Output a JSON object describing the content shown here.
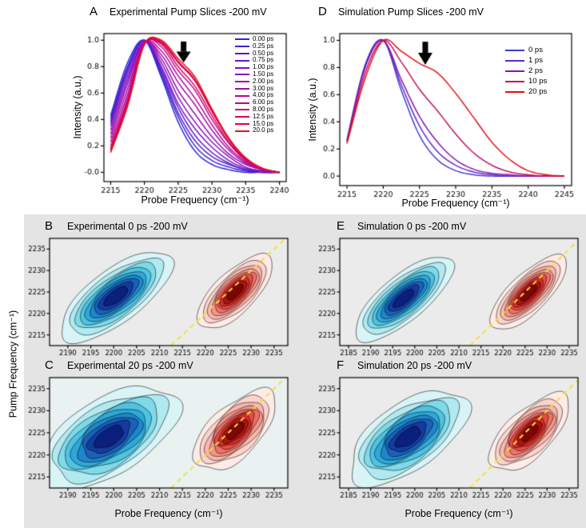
{
  "figure": {
    "bg": "#ffffff",
    "contour_section_bg": "#e4e4e4"
  },
  "shared_labels": {
    "pump_axis": "Pump Frequency (cm⁻¹)",
    "probe_axis": "Probe Frequency (cm⁻¹)"
  },
  "chart_data": [
    {
      "id": "A",
      "type": "line",
      "letter": "A",
      "title": "Experimental Pump Slices -200 mV",
      "xlabel": "Probe Frequency (cm⁻¹)",
      "ylabel": "Intensity (a.u.)",
      "xlim": [
        2214,
        2241
      ],
      "ylim": [
        -0.07,
        1.05
      ],
      "xticks": [
        2215,
        2220,
        2225,
        2230,
        2235,
        2240
      ],
      "yticks": [
        1.0,
        0.8,
        0.6,
        0.4,
        0.2,
        0.0
      ],
      "ytick_labels": [
        "1.0",
        "0.8",
        "0.6",
        "0.4",
        "0.2",
        "-0.0"
      ],
      "arrow": {
        "x": 2225.8,
        "top_y": 0.99,
        "tip_y": 0.83
      },
      "x": [
        2215,
        2217.5,
        2220,
        2222.5,
        2225,
        2227.5,
        2230,
        2232.5,
        2235,
        2237.5,
        2240
      ],
      "series": [
        {
          "name": "0.00 ps",
          "color": "#2828dc",
          "values": [
            0.43,
            0.83,
            1.0,
            0.72,
            0.38,
            0.16,
            0.06,
            0.02,
            0.0,
            0.0,
            0.0
          ]
        },
        {
          "name": "0.25 ps",
          "color": "#3d22d6",
          "values": [
            0.41,
            0.8,
            1.0,
            0.74,
            0.42,
            0.2,
            0.09,
            0.04,
            0.01,
            0.0,
            0.0
          ]
        },
        {
          "name": "0.50 ps",
          "color": "#511dd0",
          "values": [
            0.39,
            0.78,
            1.0,
            0.76,
            0.45,
            0.24,
            0.12,
            0.06,
            0.02,
            0.0,
            0.0
          ]
        },
        {
          "name": "0.75 ps",
          "color": "#6418ca",
          "values": [
            0.37,
            0.76,
            1.0,
            0.78,
            0.49,
            0.28,
            0.15,
            0.07,
            0.02,
            0.01,
            0.0
          ]
        },
        {
          "name": "1.00 ps",
          "color": "#7614c4",
          "values": [
            0.35,
            0.73,
            0.99,
            0.8,
            0.52,
            0.33,
            0.19,
            0.09,
            0.03,
            0.01,
            0.0
          ]
        },
        {
          "name": "1.50 ps",
          "color": "#8810bc",
          "values": [
            0.32,
            0.7,
            0.99,
            0.83,
            0.57,
            0.38,
            0.23,
            0.12,
            0.04,
            0.01,
            0.0
          ]
        },
        {
          "name": "2.00 ps",
          "color": "#970cb2",
          "values": [
            0.29,
            0.67,
            0.99,
            0.86,
            0.62,
            0.44,
            0.27,
            0.14,
            0.06,
            0.02,
            0.0
          ]
        },
        {
          "name": "3.00 ps",
          "color": "#a609a6",
          "values": [
            0.26,
            0.63,
            0.98,
            0.89,
            0.68,
            0.51,
            0.32,
            0.17,
            0.07,
            0.02,
            0.0
          ]
        },
        {
          "name": "4.00 ps",
          "color": "#b40797",
          "values": [
            0.23,
            0.59,
            0.98,
            0.92,
            0.73,
            0.56,
            0.36,
            0.19,
            0.08,
            0.02,
            0.0
          ]
        },
        {
          "name": "6.00 ps",
          "color": "#c10584",
          "values": [
            0.2,
            0.56,
            0.98,
            0.95,
            0.77,
            0.62,
            0.4,
            0.22,
            0.09,
            0.02,
            0.0
          ]
        },
        {
          "name": "8.00 ps",
          "color": "#cd0370",
          "values": [
            0.18,
            0.54,
            0.97,
            0.97,
            0.8,
            0.65,
            0.43,
            0.23,
            0.1,
            0.03,
            0.0
          ]
        },
        {
          "name": "12.5 ps",
          "color": "#d80257",
          "values": [
            0.17,
            0.52,
            0.97,
            0.98,
            0.83,
            0.69,
            0.46,
            0.25,
            0.1,
            0.03,
            0.0
          ]
        },
        {
          "name": "15.0 ps",
          "color": "#e2013c",
          "values": [
            0.16,
            0.51,
            0.97,
            0.99,
            0.84,
            0.7,
            0.47,
            0.25,
            0.11,
            0.03,
            0.0
          ]
        },
        {
          "name": "20.0 ps",
          "color": "#e81414",
          "values": [
            0.15,
            0.5,
            0.97,
            1.0,
            0.86,
            0.72,
            0.48,
            0.26,
            0.11,
            0.03,
            0.0
          ]
        }
      ]
    },
    {
      "id": "D",
      "type": "line",
      "letter": "D",
      "title": "Simulation Pump Slices -200 mV",
      "xlabel": "Probe Frequency (cm⁻¹)",
      "ylabel": "Intensity (a.u.)",
      "xlim": [
        2214,
        2246
      ],
      "ylim": [
        -0.07,
        1.05
      ],
      "xticks": [
        2215,
        2220,
        2225,
        2230,
        2235,
        2240,
        2245
      ],
      "yticks": [
        1.0,
        0.8,
        0.6,
        0.4,
        0.2,
        0.0
      ],
      "ytick_labels": [
        "1.0",
        "0.8",
        "0.6",
        "0.4",
        "0.2",
        "0.0"
      ],
      "arrow": {
        "x": 2225.8,
        "top_y": 0.99,
        "tip_y": 0.82
      },
      "x": [
        2215,
        2217.5,
        2220,
        2222.5,
        2225,
        2227.5,
        2230,
        2232.5,
        2235,
        2237.5,
        2240,
        2242.5,
        2245
      ],
      "series": [
        {
          "name": "0 ps",
          "color": "#3c3cd4",
          "values": [
            0.27,
            0.82,
            1.0,
            0.63,
            0.3,
            0.12,
            0.04,
            0.01,
            0.0,
            0.0,
            0.0,
            0.0,
            0.0
          ]
        },
        {
          "name": "1 ps",
          "color": "#5f28c8",
          "values": [
            0.26,
            0.81,
            1.0,
            0.67,
            0.37,
            0.18,
            0.08,
            0.03,
            0.01,
            0.0,
            0.0,
            0.0,
            0.0
          ]
        },
        {
          "name": "2 ps",
          "color": "#8c14ac",
          "values": [
            0.26,
            0.8,
            1.0,
            0.71,
            0.44,
            0.25,
            0.12,
            0.05,
            0.02,
            0.01,
            0.0,
            0.0,
            0.0
          ]
        },
        {
          "name": "10 ps",
          "color": "#c11060",
          "values": [
            0.25,
            0.76,
            1.0,
            0.84,
            0.64,
            0.48,
            0.31,
            0.17,
            0.08,
            0.03,
            0.01,
            0.0,
            0.0
          ]
        },
        {
          "name": "20 ps",
          "color": "#e01212",
          "values": [
            0.24,
            0.72,
            1.0,
            0.92,
            0.83,
            0.76,
            0.61,
            0.43,
            0.25,
            0.12,
            0.04,
            0.01,
            0.0
          ]
        }
      ]
    },
    {
      "id": "B",
      "type": "contour",
      "letter": "B",
      "title": "Experimental 0 ps -200 mV",
      "xlim": [
        2186,
        2238
      ],
      "ylim": [
        2212.5,
        2237.5
      ],
      "xticks": [
        2190,
        2195,
        2200,
        2205,
        2210,
        2215,
        2220,
        2225,
        2230,
        2235
      ],
      "yticks": [
        2215,
        2220,
        2225,
        2230,
        2235
      ],
      "plot_bg": "#ebebeb",
      "diagonal_color": "#f5e13a",
      "wobble": 0.03,
      "blobs": [
        {
          "sign": "bleach-negative",
          "cx": 2200.5,
          "cy": 2224.0,
          "a": 15.0,
          "b": 6.0,
          "slope": 0.8,
          "colors": [
            "#d9f4f6",
            "#b0e9f0",
            "#7fd9e9",
            "#4fc3e1",
            "#2fa8d8",
            "#1f86c9",
            "#1b61b8",
            "#143b9f",
            "#0b1f7d"
          ]
        },
        {
          "sign": "excited-state-positive",
          "cx": 2226.5,
          "cy": 2225.0,
          "a": 11.0,
          "b": 4.6,
          "slope": 1.05,
          "colors": [
            "#fdebe7",
            "#fbd3cc",
            "#f8b6ad",
            "#f4958a",
            "#ee7168",
            "#e54c45",
            "#d02c28",
            "#ad1410",
            "#7d0505"
          ]
        }
      ]
    },
    {
      "id": "E",
      "type": "contour",
      "letter": "E",
      "title": "Simulation 0 ps -200 mV",
      "xlim": [
        2183,
        2237
      ],
      "ylim": [
        2212.5,
        2237.5
      ],
      "xticks": [
        2185,
        2190,
        2195,
        2200,
        2205,
        2210,
        2215,
        2220,
        2225,
        2230,
        2235
      ],
      "yticks": [
        2215,
        2220,
        2225,
        2230,
        2235
      ],
      "plot_bg": "#ebebeb",
      "diagonal_color": "#f5e13a",
      "wobble": 0.025,
      "blobs": [
        {
          "sign": "bleach-negative",
          "cx": 2197.5,
          "cy": 2223.5,
          "a": 14.0,
          "b": 5.2,
          "slope": 0.85,
          "colors": [
            "#d9f4f6",
            "#b0e9f0",
            "#7fd9e9",
            "#4fc3e1",
            "#2fa8d8",
            "#1f86c9",
            "#1b61b8",
            "#143b9f",
            "#0b1f7d"
          ]
        },
        {
          "sign": "excited-state-positive",
          "cx": 2225.8,
          "cy": 2224.8,
          "a": 11.5,
          "b": 4.4,
          "slope": 1.0,
          "colors": [
            "#fdebe7",
            "#fbd3cc",
            "#f8b6ad",
            "#f4958a",
            "#ee7168",
            "#e54c45",
            "#d02c28",
            "#ad1410",
            "#7d0505"
          ]
        }
      ]
    },
    {
      "id": "C",
      "type": "contour",
      "letter": "C",
      "title": "Experimental 20 ps -200 mV",
      "xlim": [
        2186,
        2238
      ],
      "ylim": [
        2212.5,
        2237.5
      ],
      "xticks": [
        2190,
        2195,
        2200,
        2205,
        2210,
        2215,
        2220,
        2225,
        2230,
        2235
      ],
      "yticks": [
        2215,
        2220,
        2225,
        2230,
        2235
      ],
      "plot_bg": "#e9f1f1",
      "diagonal_color": "#f5e13a",
      "wobble": 0.055,
      "blobs": [
        {
          "sign": "bleach-negative",
          "cx": 2199.0,
          "cy": 2224.0,
          "a": 17.0,
          "b": 8.5,
          "slope": 0.65,
          "colors": [
            "#d9f4f6",
            "#b0e9f0",
            "#7fd9e9",
            "#4fc3e1",
            "#2fa8d8",
            "#1f86c9",
            "#1b61b8",
            "#143b9f",
            "#0b1f7d"
          ]
        },
        {
          "sign": "excited-state-positive",
          "cx": 2226.5,
          "cy": 2225.5,
          "a": 11.5,
          "b": 5.6,
          "slope": 1.0,
          "colors": [
            "#fdebe7",
            "#fbd3cc",
            "#f8b6ad",
            "#f4958a",
            "#ee7168",
            "#e54c45",
            "#d02c28",
            "#ad1410",
            "#7d0505"
          ]
        }
      ]
    },
    {
      "id": "F",
      "type": "contour",
      "letter": "F",
      "title": "Simulation 20 ps -200 mV",
      "xlim": [
        2183,
        2237
      ],
      "ylim": [
        2212.5,
        2237.5
      ],
      "xticks": [
        2185,
        2190,
        2195,
        2200,
        2205,
        2210,
        2215,
        2220,
        2225,
        2230,
        2235
      ],
      "yticks": [
        2215,
        2220,
        2225,
        2230,
        2235
      ],
      "plot_bg": "#ebebeb",
      "diagonal_color": "#f5e13a",
      "wobble": 0.05,
      "blobs": [
        {
          "sign": "bleach-negative",
          "cx": 2198.5,
          "cy": 2224.0,
          "a": 15.5,
          "b": 7.5,
          "slope": 0.7,
          "colors": [
            "#d9f4f6",
            "#b0e9f0",
            "#7fd9e9",
            "#4fc3e1",
            "#2fa8d8",
            "#1f86c9",
            "#1b61b8",
            "#143b9f",
            "#0b1f7d"
          ]
        },
        {
          "sign": "excited-state-positive",
          "cx": 2226.0,
          "cy": 2225.0,
          "a": 11.5,
          "b": 5.2,
          "slope": 0.95,
          "colors": [
            "#fdebe7",
            "#fbd3cc",
            "#f8b6ad",
            "#f4958a",
            "#ee7168",
            "#e54c45",
            "#d02c28",
            "#ad1410",
            "#7d0505"
          ]
        }
      ]
    }
  ]
}
